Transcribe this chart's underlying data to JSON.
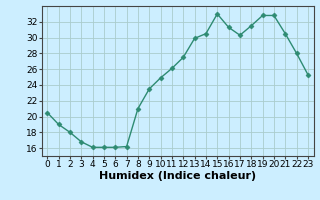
{
  "x": [
    0,
    1,
    2,
    3,
    4,
    5,
    6,
    7,
    8,
    9,
    10,
    11,
    12,
    13,
    14,
    15,
    16,
    17,
    18,
    19,
    20,
    21,
    22,
    23
  ],
  "y": [
    20.5,
    19.0,
    18.0,
    16.8,
    16.1,
    16.1,
    16.1,
    16.2,
    21.0,
    23.5,
    24.9,
    26.1,
    27.5,
    29.9,
    30.5,
    33.0,
    31.3,
    30.3,
    31.5,
    32.8,
    32.8,
    30.5,
    28.0,
    25.3
  ],
  "line_color": "#2e8b72",
  "marker": "D",
  "marker_size": 2.5,
  "bg_color": "#cceeff",
  "grid_color": "#aacccc",
  "xlabel": "Humidex (Indice chaleur)",
  "ylim": [
    15,
    34
  ],
  "xlim": [
    -0.5,
    23.5
  ],
  "yticks": [
    16,
    18,
    20,
    22,
    24,
    26,
    28,
    30,
    32
  ],
  "xticks": [
    0,
    1,
    2,
    3,
    4,
    5,
    6,
    7,
    8,
    9,
    10,
    11,
    12,
    13,
    14,
    15,
    16,
    17,
    18,
    19,
    20,
    21,
    22,
    23
  ],
  "tick_label_fontsize": 6.5,
  "xlabel_fontsize": 8
}
